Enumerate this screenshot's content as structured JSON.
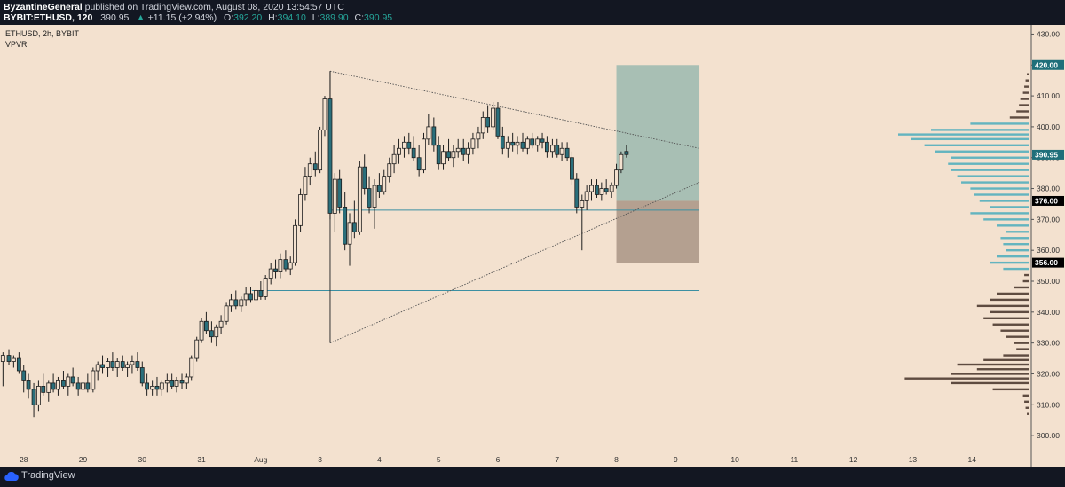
{
  "header": {
    "author": "ByzantineGeneral",
    "published_text": "published on TradingView.com, August 08, 2020 13:54:57 UTC",
    "symbol": "BYBIT:ETHUSD, 120",
    "last": "390.95",
    "change_arrow": "▲",
    "change": "+11.15 (+2.94%)",
    "open_label": "O:",
    "open": "392.20",
    "high_label": "H:",
    "high": "394.10",
    "low_label": "L:",
    "low": "389.90",
    "close_label": "C:",
    "close": "390.95"
  },
  "footer": {
    "brand": "TradingView"
  },
  "colors": {
    "background": "#f3e1cf",
    "up": "#f3e1cf",
    "down": "#2a6f7b",
    "wick": "#1e1e1e",
    "long_zone": "#a8bfb4",
    "short_zone": "#b4a090",
    "hline": "#3b8fa2",
    "vp_up": "#63b4bf",
    "vp_down": "#5e4b40"
  },
  "chart_data": {
    "type": "candlestick",
    "legend_line1": "ETHUSD, 2h, BYBIT",
    "legend_line2": "VPVR",
    "x_ticks": [
      "28",
      "29",
      "30",
      "31",
      "Aug",
      "3",
      "4",
      "5",
      "6",
      "7",
      "8",
      "9",
      "10",
      "11",
      "12",
      "13",
      "14"
    ],
    "x_tick_days": [
      0,
      1,
      2,
      3,
      4,
      5,
      6,
      7,
      8,
      9,
      10,
      11,
      12,
      13,
      14,
      15,
      16
    ],
    "x_start_day": -0.4,
    "x_end_day": 17.0,
    "y_ticks": [
      300,
      310,
      320,
      330,
      340,
      350,
      360,
      370,
      380,
      390,
      400,
      410,
      420,
      430
    ],
    "y_tick_labels": [
      "300.00",
      "310.00",
      "320.00",
      "330.00",
      "340.00",
      "350.00",
      "360.00",
      "370.00",
      "380.00",
      "390.00",
      "400.00",
      "410.00",
      "420.00",
      "430.00"
    ],
    "ylim": [
      294,
      433
    ],
    "price_tags": [
      {
        "value": 420,
        "label": "420.00",
        "kind": "teal"
      },
      {
        "value": 390.95,
        "label": "390.95",
        "kind": "teal"
      },
      {
        "value": 376,
        "label": "376.00",
        "kind": "black"
      },
      {
        "value": 356,
        "label": "356.00",
        "kind": "black"
      }
    ],
    "candles": [
      [
        -0.35,
        324,
        327,
        316,
        326
      ],
      [
        -0.25,
        326,
        328,
        323,
        324
      ],
      [
        -0.17,
        324,
        326,
        322,
        325
      ],
      [
        -0.08,
        325,
        327,
        320,
        321
      ],
      [
        0.0,
        321,
        323,
        314,
        318
      ],
      [
        0.08,
        318,
        320,
        312,
        315
      ],
      [
        0.17,
        315,
        317,
        306,
        310
      ],
      [
        0.25,
        310,
        318,
        308,
        316
      ],
      [
        0.33,
        316,
        320,
        313,
        314
      ],
      [
        0.42,
        314,
        318,
        311,
        317
      ],
      [
        0.5,
        317,
        320,
        314,
        315
      ],
      [
        0.58,
        315,
        319,
        313,
        318
      ],
      [
        0.67,
        318,
        321,
        315,
        316
      ],
      [
        0.75,
        316,
        320,
        313,
        319
      ],
      [
        0.83,
        319,
        322,
        316,
        317
      ],
      [
        0.92,
        317,
        319,
        313,
        315
      ],
      [
        1.0,
        315,
        318,
        313,
        317
      ],
      [
        1.08,
        317,
        320,
        314,
        315
      ],
      [
        1.17,
        315,
        322,
        314,
        321
      ],
      [
        1.25,
        321,
        324,
        318,
        323
      ],
      [
        1.33,
        323,
        326,
        320,
        322
      ],
      [
        1.42,
        322,
        325,
        319,
        324
      ],
      [
        1.5,
        324,
        327,
        321,
        322
      ],
      [
        1.58,
        322,
        325,
        319,
        324
      ],
      [
        1.67,
        324,
        326,
        321,
        322
      ],
      [
        1.75,
        322,
        324,
        319,
        323
      ],
      [
        1.83,
        323,
        326,
        320,
        324
      ],
      [
        1.92,
        324,
        327,
        321,
        322
      ],
      [
        2.0,
        322,
        324,
        316,
        317
      ],
      [
        2.08,
        317,
        320,
        313,
        315
      ],
      [
        2.17,
        315,
        318,
        313,
        316
      ],
      [
        2.25,
        316,
        319,
        313,
        315
      ],
      [
        2.33,
        315,
        318,
        313,
        317
      ],
      [
        2.42,
        317,
        320,
        314,
        318
      ],
      [
        2.5,
        318,
        320,
        315,
        316
      ],
      [
        2.58,
        316,
        319,
        314,
        318
      ],
      [
        2.67,
        318,
        320,
        315,
        317
      ],
      [
        2.75,
        317,
        320,
        315,
        319
      ],
      [
        2.83,
        319,
        326,
        318,
        325
      ],
      [
        2.92,
        325,
        332,
        324,
        331
      ],
      [
        3.0,
        331,
        338,
        330,
        337
      ],
      [
        3.08,
        337,
        340,
        333,
        334
      ],
      [
        3.17,
        334,
        337,
        330,
        332
      ],
      [
        3.25,
        332,
        336,
        329,
        335
      ],
      [
        3.33,
        335,
        339,
        333,
        337
      ],
      [
        3.42,
        337,
        343,
        336,
        342
      ],
      [
        3.5,
        342,
        346,
        340,
        344
      ],
      [
        3.58,
        344,
        347,
        341,
        342
      ],
      [
        3.67,
        342,
        345,
        340,
        344
      ],
      [
        3.75,
        344,
        348,
        342,
        346
      ],
      [
        3.83,
        346,
        348,
        343,
        344
      ],
      [
        3.92,
        344,
        348,
        342,
        347
      ],
      [
        4.0,
        347,
        350,
        344,
        345
      ],
      [
        4.08,
        345,
        352,
        344,
        351
      ],
      [
        4.17,
        351,
        356,
        349,
        354
      ],
      [
        4.25,
        354,
        357,
        351,
        353
      ],
      [
        4.33,
        353,
        359,
        351,
        357
      ],
      [
        4.42,
        357,
        360,
        353,
        354
      ],
      [
        4.5,
        354,
        358,
        352,
        356
      ],
      [
        4.58,
        356,
        370,
        355,
        368
      ],
      [
        4.67,
        368,
        380,
        366,
        378
      ],
      [
        4.75,
        378,
        387,
        376,
        384
      ],
      [
        4.83,
        384,
        390,
        381,
        388
      ],
      [
        4.92,
        388,
        392,
        384,
        386
      ],
      [
        5.0,
        386,
        400,
        385,
        399
      ],
      [
        5.08,
        399,
        410,
        397,
        409
      ],
      [
        5.17,
        409,
        418,
        370,
        372
      ],
      [
        5.25,
        372,
        385,
        366,
        383
      ],
      [
        5.33,
        383,
        386,
        372,
        374
      ],
      [
        5.42,
        374,
        379,
        360,
        362
      ],
      [
        5.5,
        362,
        372,
        355,
        369
      ],
      [
        5.58,
        369,
        376,
        364,
        366
      ],
      [
        5.67,
        366,
        389,
        365,
        387
      ],
      [
        5.75,
        387,
        391,
        378,
        380
      ],
      [
        5.83,
        380,
        384,
        372,
        374
      ],
      [
        5.92,
        374,
        383,
        367,
        381
      ],
      [
        6.0,
        381,
        385,
        377,
        379
      ],
      [
        6.08,
        379,
        386,
        378,
        384
      ],
      [
        6.17,
        384,
        390,
        382,
        388
      ],
      [
        6.25,
        388,
        394,
        385,
        391
      ],
      [
        6.33,
        391,
        396,
        388,
        393
      ],
      [
        6.42,
        393,
        397,
        390,
        395
      ],
      [
        6.5,
        395,
        398,
        391,
        393
      ],
      [
        6.58,
        393,
        397,
        389,
        390
      ],
      [
        6.67,
        390,
        394,
        384,
        386
      ],
      [
        6.75,
        386,
        398,
        385,
        396
      ],
      [
        6.83,
        396,
        404,
        394,
        400
      ],
      [
        6.92,
        400,
        403,
        392,
        394
      ],
      [
        7.0,
        394,
        397,
        386,
        388
      ],
      [
        7.08,
        388,
        394,
        386,
        392
      ],
      [
        7.17,
        392,
        396,
        389,
        390
      ],
      [
        7.25,
        390,
        394,
        387,
        392
      ],
      [
        7.33,
        392,
        396,
        390,
        393
      ],
      [
        7.42,
        393,
        396,
        389,
        391
      ],
      [
        7.5,
        391,
        395,
        388,
        393
      ],
      [
        7.58,
        393,
        398,
        391,
        396
      ],
      [
        7.67,
        396,
        400,
        393,
        398
      ],
      [
        7.75,
        398,
        405,
        396,
        403
      ],
      [
        7.83,
        403,
        407,
        398,
        400
      ],
      [
        7.92,
        400,
        408,
        399,
        406
      ],
      [
        8.0,
        406,
        408,
        396,
        397
      ],
      [
        8.08,
        397,
        400,
        391,
        393
      ],
      [
        8.17,
        393,
        397,
        390,
        395
      ],
      [
        8.25,
        395,
        398,
        392,
        394
      ],
      [
        8.33,
        394,
        397,
        391,
        395
      ],
      [
        8.42,
        395,
        398,
        392,
        393
      ],
      [
        8.5,
        393,
        397,
        391,
        396
      ],
      [
        8.58,
        396,
        398,
        393,
        394
      ],
      [
        8.67,
        394,
        397,
        392,
        396
      ],
      [
        8.75,
        396,
        398,
        393,
        395
      ],
      [
        8.83,
        395,
        397,
        390,
        392
      ],
      [
        8.92,
        392,
        396,
        390,
        394
      ],
      [
        9.0,
        394,
        396,
        390,
        391
      ],
      [
        9.08,
        391,
        395,
        389,
        393
      ],
      [
        9.17,
        393,
        395,
        389,
        390
      ],
      [
        9.25,
        390,
        392,
        381,
        383
      ],
      [
        9.33,
        383,
        385,
        372,
        374
      ],
      [
        9.42,
        374,
        378,
        360,
        376
      ],
      [
        9.5,
        376,
        381,
        373,
        379
      ],
      [
        9.58,
        379,
        383,
        376,
        381
      ],
      [
        9.67,
        381,
        383,
        377,
        378
      ],
      [
        9.75,
        378,
        382,
        376,
        380
      ],
      [
        9.83,
        380,
        383,
        378,
        379
      ],
      [
        9.92,
        379,
        382,
        377,
        381
      ],
      [
        10.0,
        381,
        388,
        380,
        386
      ],
      [
        10.08,
        386,
        392,
        385,
        391
      ],
      [
        10.17,
        392,
        394,
        390,
        391
      ]
    ],
    "hlines": [
      {
        "value": 373,
        "start_day": 5.17,
        "end_day": 11.4
      },
      {
        "value": 347,
        "start_day": 3.85,
        "end_day": 11.4
      }
    ],
    "triangle_lines": [
      {
        "from_day": 5.17,
        "from": 418,
        "to_day": 11.4,
        "to": 393
      },
      {
        "from_day": 5.17,
        "from": 330,
        "to_day": 11.4,
        "to": 382
      }
    ],
    "vline": {
      "day": 5.17,
      "from": 418,
      "to": 330
    },
    "position": {
      "start_day": 10.0,
      "end_day": 11.4,
      "target": 420,
      "entry": 376,
      "stop": 356
    },
    "vpvr": [
      {
        "price": 307,
        "vol": 0.02,
        "up": 0,
        "kind": "down"
      },
      {
        "price": 309,
        "vol": 0.03,
        "up": 0,
        "kind": "down"
      },
      {
        "price": 311,
        "vol": 0.04,
        "up": 0,
        "kind": "down"
      },
      {
        "price": 313,
        "vol": 0.05,
        "up": 0,
        "kind": "down"
      },
      {
        "price": 315,
        "vol": 0.28,
        "up": 0,
        "kind": "down"
      },
      {
        "price": 317,
        "vol": 0.6,
        "up": 0,
        "kind": "down"
      },
      {
        "price": 318.5,
        "vol": 0.95,
        "up": 0,
        "kind": "down"
      },
      {
        "price": 320,
        "vol": 0.6,
        "up": 0,
        "kind": "down"
      },
      {
        "price": 321.5,
        "vol": 0.4,
        "up": 0,
        "kind": "down"
      },
      {
        "price": 323,
        "vol": 0.55,
        "up": 0,
        "kind": "down"
      },
      {
        "price": 324.5,
        "vol": 0.35,
        "up": 0,
        "kind": "down"
      },
      {
        "price": 326,
        "vol": 0.2,
        "up": 0,
        "kind": "down"
      },
      {
        "price": 328,
        "vol": 0.1,
        "up": 0,
        "kind": "down"
      },
      {
        "price": 330,
        "vol": 0.12,
        "up": 0,
        "kind": "down"
      },
      {
        "price": 332,
        "vol": 0.18,
        "up": 0,
        "kind": "down"
      },
      {
        "price": 334,
        "vol": 0.22,
        "up": 0,
        "kind": "down"
      },
      {
        "price": 336,
        "vol": 0.28,
        "up": 0,
        "kind": "down"
      },
      {
        "price": 338,
        "vol": 0.35,
        "up": 0,
        "kind": "down"
      },
      {
        "price": 340,
        "vol": 0.3,
        "up": 0,
        "kind": "down"
      },
      {
        "price": 342,
        "vol": 0.4,
        "up": 0,
        "kind": "down"
      },
      {
        "price": 344,
        "vol": 0.3,
        "up": 0,
        "kind": "down"
      },
      {
        "price": 346,
        "vol": 0.25,
        "up": 0,
        "kind": "down"
      },
      {
        "price": 348,
        "vol": 0.12,
        "up": 0,
        "kind": "down"
      },
      {
        "price": 350,
        "vol": 0.05,
        "up": 0,
        "kind": "down"
      },
      {
        "price": 352,
        "vol": 0.04,
        "up": 0,
        "kind": "down"
      },
      {
        "price": 354,
        "vol": 0.2,
        "up": 1,
        "kind": "up"
      },
      {
        "price": 356,
        "vol": 0.3,
        "up": 1,
        "kind": "up"
      },
      {
        "price": 358,
        "vol": 0.25,
        "up": 1,
        "kind": "up"
      },
      {
        "price": 360,
        "vol": 0.18,
        "up": 1,
        "kind": "up"
      },
      {
        "price": 362,
        "vol": 0.2,
        "up": 1,
        "kind": "up"
      },
      {
        "price": 364,
        "vol": 0.22,
        "up": 1,
        "kind": "up"
      },
      {
        "price": 366,
        "vol": 0.18,
        "up": 1,
        "kind": "up"
      },
      {
        "price": 368,
        "vol": 0.25,
        "up": 1,
        "kind": "up"
      },
      {
        "price": 370,
        "vol": 0.35,
        "up": 1,
        "kind": "up"
      },
      {
        "price": 372,
        "vol": 0.45,
        "up": 1,
        "kind": "up"
      },
      {
        "price": 374,
        "vol": 0.3,
        "up": 1,
        "kind": "up"
      },
      {
        "price": 376,
        "vol": 0.38,
        "up": 1,
        "kind": "up"
      },
      {
        "price": 378,
        "vol": 0.42,
        "up": 1,
        "kind": "up"
      },
      {
        "price": 380,
        "vol": 0.45,
        "up": 1,
        "kind": "up"
      },
      {
        "price": 382,
        "vol": 0.52,
        "up": 1,
        "kind": "up"
      },
      {
        "price": 384,
        "vol": 0.55,
        "up": 1,
        "kind": "up"
      },
      {
        "price": 386,
        "vol": 0.6,
        "up": 1,
        "kind": "up"
      },
      {
        "price": 388,
        "vol": 0.62,
        "up": 1,
        "kind": "up"
      },
      {
        "price": 390,
        "vol": 0.6,
        "up": 1,
        "kind": "up"
      },
      {
        "price": 392,
        "vol": 0.72,
        "up": 1,
        "kind": "up"
      },
      {
        "price": 394,
        "vol": 0.8,
        "up": 1,
        "kind": "up"
      },
      {
        "price": 396,
        "vol": 0.9,
        "up": 1,
        "kind": "up"
      },
      {
        "price": 397.5,
        "vol": 1.0,
        "up": 1,
        "kind": "up"
      },
      {
        "price": 399,
        "vol": 0.75,
        "up": 1,
        "kind": "up"
      },
      {
        "price": 401,
        "vol": 0.45,
        "up": 1,
        "kind": "up"
      },
      {
        "price": 403,
        "vol": 0.15,
        "up": 1,
        "kind": "down"
      },
      {
        "price": 405,
        "vol": 0.1,
        "up": 0,
        "kind": "down"
      },
      {
        "price": 407,
        "vol": 0.08,
        "up": 0,
        "kind": "down"
      },
      {
        "price": 409,
        "vol": 0.07,
        "up": 0,
        "kind": "down"
      },
      {
        "price": 411,
        "vol": 0.05,
        "up": 0,
        "kind": "down"
      },
      {
        "price": 413,
        "vol": 0.04,
        "up": 0,
        "kind": "down"
      },
      {
        "price": 415,
        "vol": 0.03,
        "up": 0,
        "kind": "down"
      },
      {
        "price": 417,
        "vol": 0.02,
        "up": 0,
        "kind": "down"
      }
    ]
  }
}
